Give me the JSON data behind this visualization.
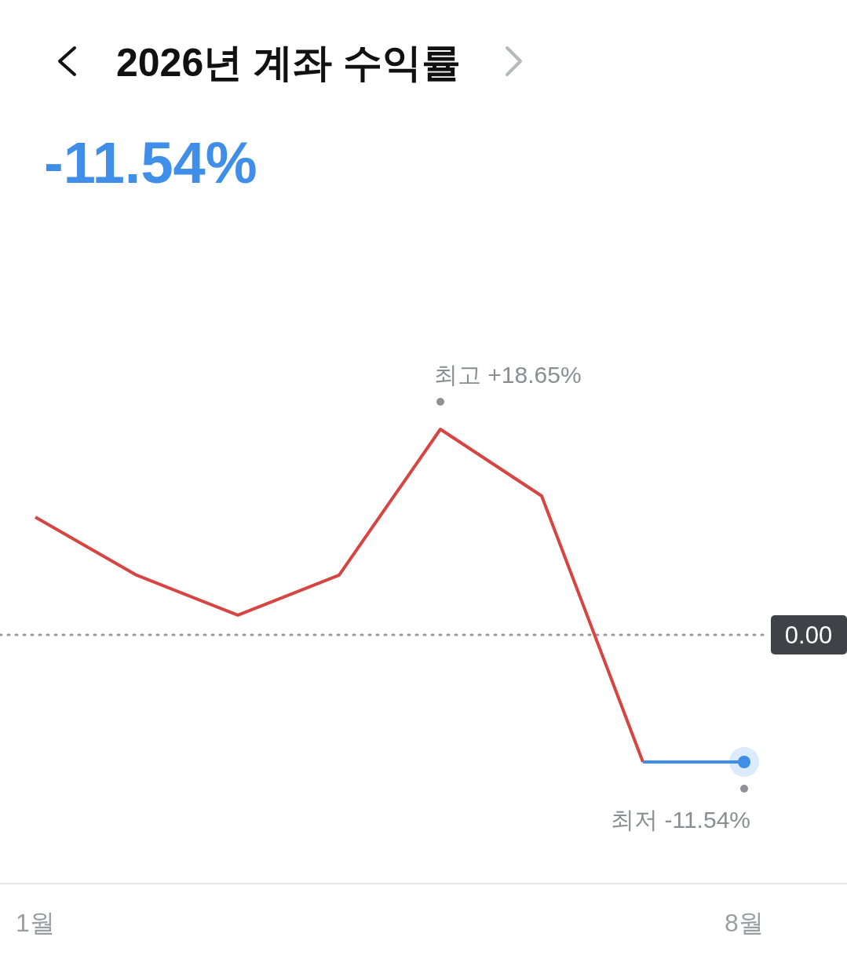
{
  "chart_data": {
    "type": "line",
    "title": "2026년 계좌 수익률",
    "subtitle": "-11.54%",
    "categories": [
      "1월",
      null,
      null,
      null,
      null,
      null,
      null,
      "8월"
    ],
    "series": [
      {
        "color": "#d64541",
        "values": [
          10.68,
          5.41,
          1.78,
          5.41,
          18.65,
          12.6,
          -11.54,
          null
        ],
        "value_labels": [
          null,
          null,
          null,
          null,
          "최고 +18.65%",
          null,
          null,
          null
        ]
      },
      {
        "color": "#3f8ee8",
        "values": [
          null,
          null,
          null,
          null,
          null,
          null,
          -11.54,
          -11.54
        ],
        "value_labels": [
          null,
          null,
          null,
          null,
          null,
          null,
          null,
          "최저 -11.54%"
        ]
      }
    ],
    "ref_lines": [
      {
        "axis": "y",
        "value": 0,
        "label": "0.00",
        "color": "#999999",
        "line_style": "dotted"
      }
    ],
    "line_style": "solid"
  }
}
